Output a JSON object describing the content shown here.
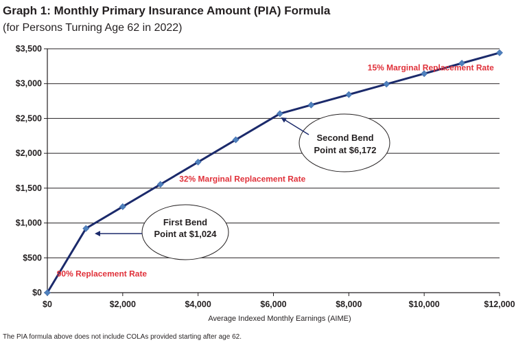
{
  "chart_data": {
    "type": "line",
    "title": "Graph 1: Monthly Primary Insurance Amount (PIA) Formula",
    "subtitle": "(for Persons Turning Age 62 in 2022)",
    "xlabel": "Average Indexed Monthly Earnings (AIME)",
    "ylabel": "",
    "xlim": [
      0,
      12000
    ],
    "ylim": [
      0,
      3500
    ],
    "x_ticks": [
      0,
      2000,
      4000,
      6000,
      8000,
      10000,
      12000
    ],
    "x_tick_labels": [
      "$0",
      "$2,000",
      "$4,000",
      "$6,000",
      "$8,000",
      "$10,000",
      "$12,000"
    ],
    "y_ticks": [
      0,
      500,
      1000,
      1500,
      2000,
      2500,
      3000,
      3500
    ],
    "y_tick_labels": [
      "$0",
      "$500",
      "$1,000",
      "$1,500",
      "$2,000",
      "$2,500",
      "$3,000",
      "$3,500"
    ],
    "grid": "horizontal",
    "series": [
      {
        "name": "PIA",
        "color": "#1b2a6b",
        "marker_color": "#4f81bd",
        "x": [
          0,
          1024,
          2000,
          3000,
          4000,
          5000,
          6172,
          7000,
          8000,
          9000,
          10000,
          11000,
          12000
        ],
        "y": [
          0,
          921,
          1234,
          1554,
          1874,
          2194,
          2569,
          2693,
          2843,
          2993,
          3143,
          3293,
          3443
        ]
      }
    ],
    "annotations": [
      {
        "id": "rate90",
        "text": "90% Replacement Rate",
        "x": 250,
        "y": 230,
        "color": "#e0313a"
      },
      {
        "id": "rate32",
        "text": "32% Marginal Replacement Rate",
        "x": 3500,
        "y": 1590,
        "color": "#e0313a"
      },
      {
        "id": "rate15",
        "text": "15% Marginal Replacement Rate",
        "x": 8500,
        "y": 3190,
        "color": "#e0313a"
      }
    ],
    "callouts": [
      {
        "id": "first-bend",
        "lines": [
          "First Bend",
          "Point at $1,024"
        ],
        "target_x": 1024,
        "target_y": 921
      },
      {
        "id": "second-bend",
        "lines": [
          "Second Bend",
          "Point at $6,172"
        ],
        "target_x": 6172,
        "target_y": 2569
      }
    ]
  },
  "footnote": "The PIA formula above does not include COLAs provided starting after age 62."
}
